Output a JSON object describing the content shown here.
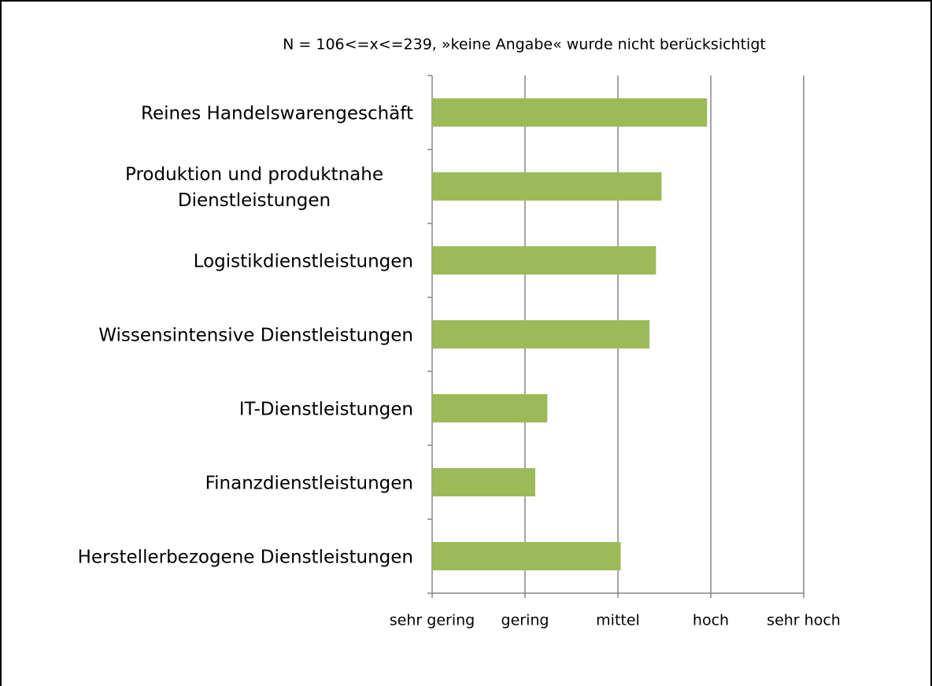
{
  "chart_data": {
    "type": "barh",
    "title": "N = 106<=x<=239, »keine Angabe« wurde nicht berücksichtigt",
    "categories": [
      "Reines Handelswarengeschäft",
      "Produktion und produktnahe Dienstleistungen",
      "Logistikdienstleistungen",
      "Wissensintensive Dienstleistungen",
      "IT-Dienstleistungen",
      "Finanzdienstleistungen",
      "Herstellerbezogene Dienstleistungen"
    ],
    "values": [
      3.96,
      3.47,
      3.41,
      3.34,
      2.24,
      2.11,
      3.03
    ],
    "color": "#9bbb59",
    "xlim": [
      1,
      5
    ],
    "xticks": [
      {
        "value": 1,
        "label": "sehr gering"
      },
      {
        "value": 2,
        "label": "gering"
      },
      {
        "value": 3,
        "label": "mittel"
      },
      {
        "value": 4,
        "label": "hoch"
      },
      {
        "value": 5,
        "label": "sehr hoch"
      }
    ],
    "grid": true
  }
}
